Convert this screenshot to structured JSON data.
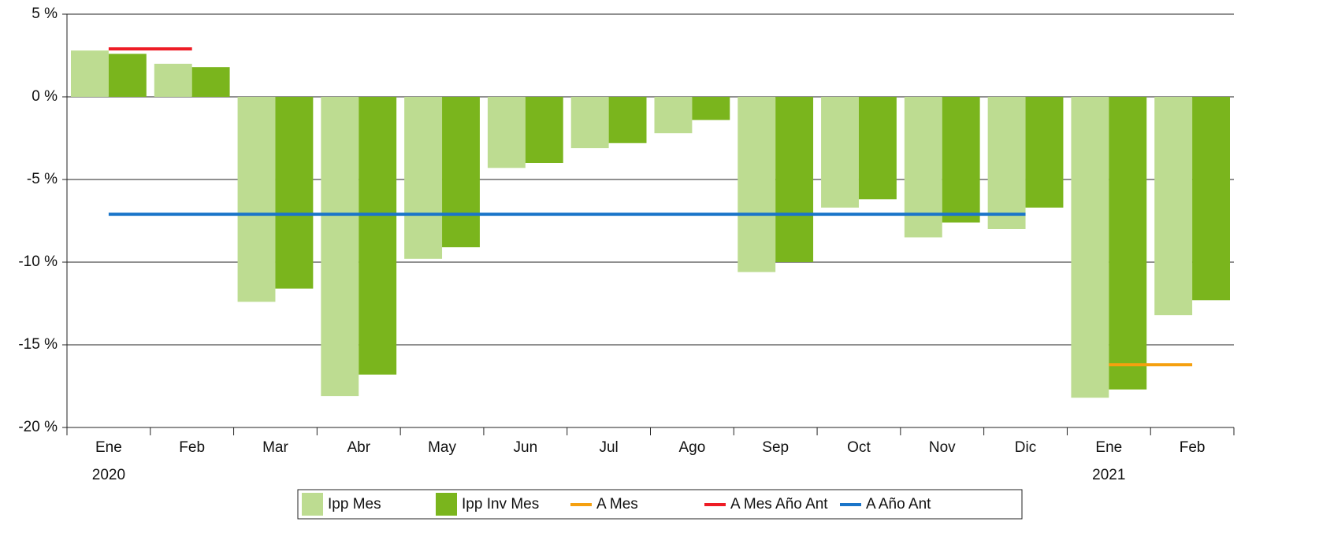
{
  "chart_data": {
    "type": "bar",
    "categories": [
      "Ene",
      "Feb",
      "Mar",
      "Abr",
      "May",
      "Jun",
      "Jul",
      "Ago",
      "Sep",
      "Oct",
      "Nov",
      "Dic",
      "Ene",
      "Feb"
    ],
    "year_labels": [
      "2020",
      null,
      null,
      null,
      null,
      null,
      null,
      null,
      null,
      null,
      null,
      null,
      "2021",
      null
    ],
    "ylim": [
      -20,
      5
    ],
    "yticks": [
      {
        "value": -20,
        "label": "-20 %"
      },
      {
        "value": -15,
        "label": "-15 %"
      },
      {
        "value": -10,
        "label": "-10 %"
      },
      {
        "value": -5,
        "label": "-5 %"
      },
      {
        "value": 0,
        "label": "0 %"
      },
      {
        "value": 5,
        "label": "5 %"
      }
    ],
    "grid": true,
    "legend": "bottom",
    "series": [
      {
        "name": "Ipp Mes",
        "type": "bar",
        "color": "#bddc91",
        "values": [
          2.8,
          2.0,
          -12.4,
          -18.1,
          -9.8,
          -4.3,
          -3.1,
          -2.2,
          -10.6,
          -6.7,
          -8.5,
          -8.0,
          -18.2,
          -13.2
        ]
      },
      {
        "name": "Ipp Inv Mes",
        "type": "bar",
        "color": "#7ab51d",
        "values": [
          2.6,
          1.8,
          -11.6,
          -16.8,
          -9.1,
          -4.0,
          -2.8,
          -1.4,
          -10.0,
          -6.2,
          -7.6,
          -6.7,
          -17.7,
          -12.3
        ]
      },
      {
        "name": "A Mes",
        "type": "line",
        "color": "#f5a00f",
        "values": [
          null,
          null,
          null,
          null,
          null,
          null,
          null,
          null,
          null,
          null,
          null,
          null,
          -16.2,
          -16.2
        ]
      },
      {
        "name": "A Mes Año Ant",
        "type": "line",
        "color": "#ee1c25",
        "values": [
          2.9,
          2.9,
          null,
          null,
          null,
          null,
          null,
          null,
          null,
          null,
          null,
          null,
          null,
          null
        ]
      },
      {
        "name": "A Año Ant",
        "type": "line",
        "color": "#1a75c9",
        "values": [
          -7.1,
          -7.1,
          -7.1,
          -7.1,
          -7.1,
          -7.1,
          -7.1,
          -7.1,
          -7.1,
          -7.1,
          -7.1,
          -7.1,
          null,
          null
        ]
      }
    ]
  }
}
